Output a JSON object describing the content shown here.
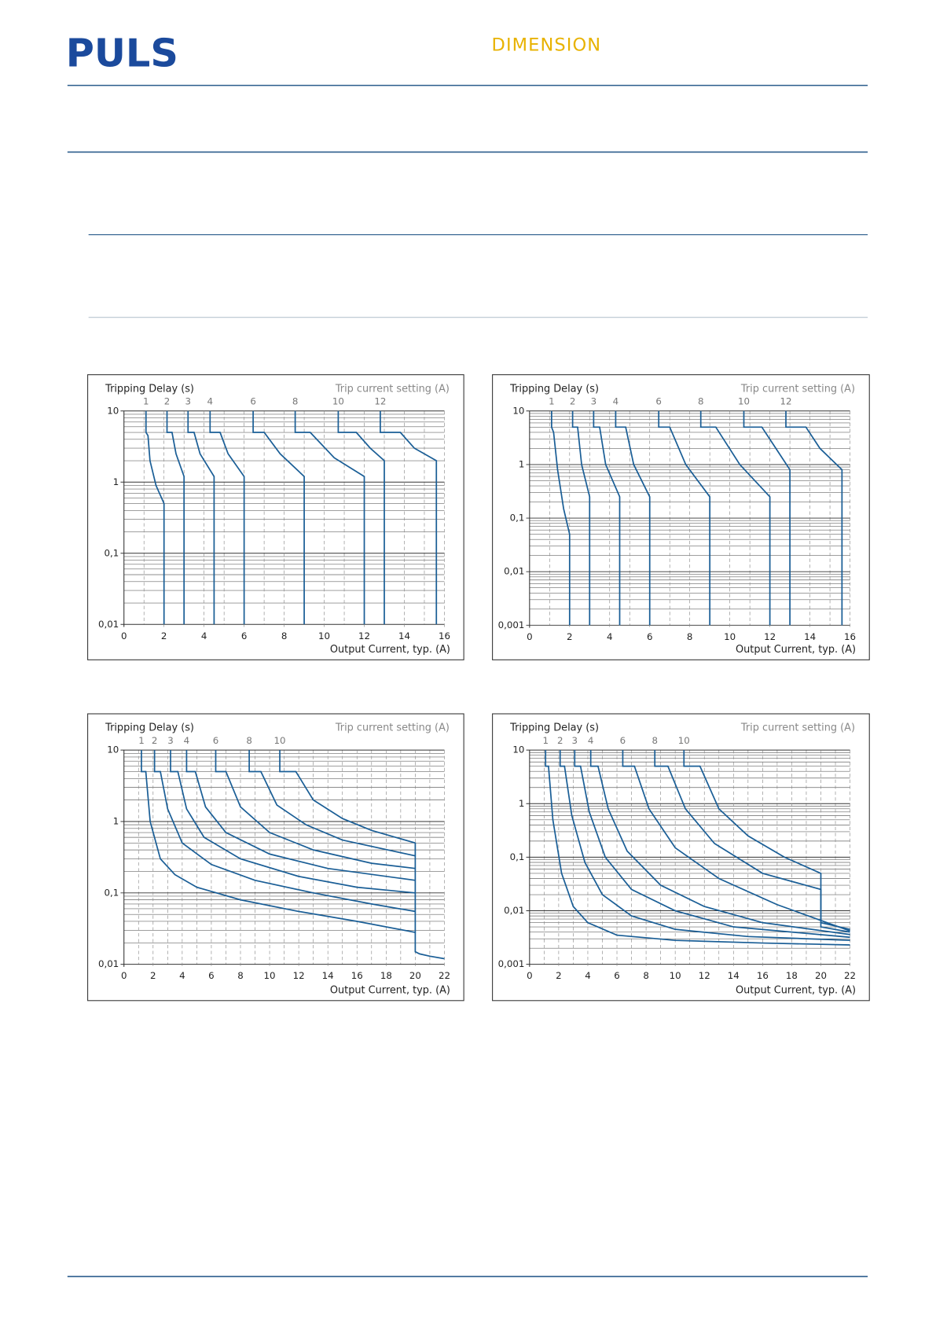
{
  "header": {
    "logo": "PULS",
    "brand": "DIMENSION"
  },
  "chart_data": [
    {
      "type": "line",
      "y_label": "Tripping Delay (s)",
      "legend_title": "Trip current setting (A)",
      "x_label": "Output Current, typ. (A)",
      "xlim": [
        0,
        16
      ],
      "xticks": [
        0,
        2,
        4,
        6,
        8,
        10,
        12,
        14,
        16
      ],
      "ylim": [
        0.01,
        10
      ],
      "yticks": [
        {
          "value": 0.01,
          "label": "0,01"
        },
        {
          "value": 0.1,
          "label": "0,1"
        },
        1,
        10
      ],
      "log_y": true,
      "grid": true,
      "color": "#1a5e96",
      "series": [
        {
          "name": "1",
          "x": [
            1.1,
            1.1,
            1.2,
            1.3,
            1.6,
            2,
            2
          ],
          "values": [
            10,
            5,
            4.5,
            2,
            0.9,
            0.5,
            0.01
          ]
        },
        {
          "name": "2",
          "x": [
            2.15,
            2.15,
            2.4,
            2.6,
            3,
            3
          ],
          "values": [
            10,
            5,
            5,
            2.5,
            1.2,
            0.01
          ]
        },
        {
          "name": "3",
          "x": [
            3.2,
            3.2,
            3.5,
            3.8,
            4.5,
            4.5
          ],
          "values": [
            10,
            5,
            5,
            2.5,
            1.2,
            0.01
          ]
        },
        {
          "name": "4",
          "x": [
            4.3,
            4.3,
            4.8,
            5.2,
            6,
            6
          ],
          "values": [
            10,
            5,
            5,
            2.5,
            1.2,
            0.01
          ]
        },
        {
          "name": "6",
          "x": [
            6.45,
            6.45,
            7,
            7.8,
            9,
            9
          ],
          "values": [
            10,
            5,
            5,
            2.5,
            1.2,
            0.01
          ]
        },
        {
          "name": "8",
          "x": [
            8.55,
            8.55,
            9.3,
            10.5,
            12,
            12
          ],
          "values": [
            10,
            5,
            5,
            2.2,
            1.2,
            0.01
          ]
        },
        {
          "name": "10",
          "x": [
            10.7,
            10.7,
            11.6,
            12.3,
            13,
            13
          ],
          "values": [
            10,
            5,
            5,
            3,
            2,
            0.01
          ]
        },
        {
          "name": "12",
          "x": [
            12.8,
            12.8,
            13.8,
            14.5,
            15.6,
            15.6
          ],
          "values": [
            10,
            5,
            5,
            3,
            2,
            0.01
          ]
        }
      ]
    },
    {
      "type": "line",
      "y_label": "Tripping Delay (s)",
      "legend_title": "Trip current setting (A)",
      "x_label": "Output Current, typ. (A)",
      "xlim": [
        0,
        16
      ],
      "xticks": [
        0,
        2,
        4,
        6,
        8,
        10,
        12,
        14,
        16
      ],
      "ylim": [
        0.001,
        10
      ],
      "yticks": [
        {
          "value": 0.001,
          "label": "0,001"
        },
        {
          "value": 0.01,
          "label": "0,01"
        },
        {
          "value": 0.1,
          "label": "0,1"
        },
        1,
        10
      ],
      "log_y": true,
      "grid": true,
      "color": "#1a5e96",
      "series": [
        {
          "name": "1",
          "x": [
            1.1,
            1.1,
            1.2,
            1.4,
            1.7,
            2,
            2
          ],
          "values": [
            10,
            5,
            4,
            0.8,
            0.15,
            0.05,
            0.001
          ]
        },
        {
          "name": "2",
          "x": [
            2.15,
            2.15,
            2.4,
            2.6,
            3,
            3
          ],
          "values": [
            10,
            5,
            5,
            1,
            0.25,
            0.001
          ]
        },
        {
          "name": "3",
          "x": [
            3.2,
            3.2,
            3.5,
            3.8,
            4.5,
            4.5
          ],
          "values": [
            10,
            5,
            5,
            1,
            0.25,
            0.001
          ]
        },
        {
          "name": "4",
          "x": [
            4.3,
            4.3,
            4.8,
            5.2,
            6,
            6
          ],
          "values": [
            10,
            5,
            5,
            1,
            0.25,
            0.001
          ]
        },
        {
          "name": "6",
          "x": [
            6.45,
            6.45,
            7,
            7.8,
            9,
            9
          ],
          "values": [
            10,
            5,
            5,
            1,
            0.25,
            0.001
          ]
        },
        {
          "name": "8",
          "x": [
            8.55,
            8.55,
            9.3,
            10.5,
            12,
            12
          ],
          "values": [
            10,
            5,
            5,
            1,
            0.25,
            0.001
          ]
        },
        {
          "name": "10",
          "x": [
            10.7,
            10.7,
            11.6,
            12.3,
            13,
            13
          ],
          "values": [
            10,
            5,
            5,
            2,
            0.8,
            0.001
          ]
        },
        {
          "name": "12",
          "x": [
            12.8,
            12.8,
            13.8,
            14.5,
            15.6,
            15.6
          ],
          "values": [
            10,
            5,
            5,
            2,
            0.8,
            0.001
          ]
        }
      ]
    },
    {
      "type": "line",
      "y_label": "Tripping Delay (s)",
      "legend_title": "Trip current setting (A)",
      "x_label": "Output Current, typ. (A)",
      "xlim": [
        0,
        22
      ],
      "xticks": [
        0,
        2,
        4,
        6,
        8,
        10,
        12,
        14,
        16,
        18,
        20,
        22
      ],
      "ylim": [
        0.01,
        10
      ],
      "yticks": [
        {
          "value": 0.01,
          "label": "0,01"
        },
        {
          "value": 0.1,
          "label": "0,1"
        },
        1,
        10
      ],
      "log_y": true,
      "grid": true,
      "color": "#1a5e96",
      "series": [
        {
          "name": "1",
          "x": [
            1.2,
            1.2,
            1.5,
            1.8,
            2.5,
            3.5,
            5,
            8,
            12,
            16,
            20,
            20,
            20.3,
            21,
            22
          ],
          "values": [
            10,
            5,
            5,
            1,
            0.3,
            0.18,
            0.12,
            0.08,
            0.055,
            0.04,
            0.028,
            0.015,
            0.014,
            0.013,
            0.012
          ]
        },
        {
          "name": "2",
          "x": [
            2.1,
            2.1,
            2.5,
            3,
            4,
            6,
            9,
            13,
            17,
            20
          ],
          "values": [
            10,
            5,
            5,
            1.5,
            0.5,
            0.25,
            0.15,
            0.1,
            0.07,
            0.055
          ]
        },
        {
          "name": "3",
          "x": [
            3.2,
            3.2,
            3.7,
            4.3,
            5.5,
            8,
            12,
            16,
            20
          ],
          "values": [
            10,
            5,
            5,
            1.5,
            0.6,
            0.3,
            0.17,
            0.12,
            0.1
          ]
        },
        {
          "name": "4",
          "x": [
            4.3,
            4.3,
            4.9,
            5.6,
            7,
            10,
            14,
            20
          ],
          "values": [
            10,
            5,
            5,
            1.6,
            0.7,
            0.35,
            0.22,
            0.15
          ]
        },
        {
          "name": "6",
          "x": [
            6.3,
            6.3,
            7,
            8,
            10,
            13,
            17,
            20
          ],
          "values": [
            10,
            5,
            5,
            1.6,
            0.7,
            0.4,
            0.26,
            0.22
          ]
        },
        {
          "name": "8",
          "x": [
            8.6,
            8.6,
            9.4,
            10.5,
            12.5,
            15,
            20
          ],
          "values": [
            10,
            5,
            5,
            1.7,
            0.9,
            0.55,
            0.33
          ]
        },
        {
          "name": "10",
          "x": [
            10.7,
            10.7,
            11.8,
            13,
            15,
            17,
            20,
            20
          ],
          "values": [
            10,
            5,
            5,
            2,
            1.1,
            0.75,
            0.5,
            0.028
          ]
        }
      ]
    },
    {
      "type": "line",
      "y_label": "Tripping Delay (s)",
      "legend_title": "Trip current setting (A)",
      "x_label": "Output Current, typ. (A)",
      "xlim": [
        0,
        22
      ],
      "xticks": [
        0,
        2,
        4,
        6,
        8,
        10,
        12,
        14,
        16,
        18,
        20,
        22
      ],
      "ylim": [
        0.001,
        10
      ],
      "yticks": [
        {
          "value": 0.001,
          "label": "0,001"
        },
        {
          "value": 0.01,
          "label": "0,01"
        },
        {
          "value": 0.1,
          "label": "0,1"
        },
        1,
        10
      ],
      "log_y": true,
      "grid": true,
      "color": "#1a5e96",
      "series": [
        {
          "name": "1",
          "x": [
            1.1,
            1.1,
            1.3,
            1.6,
            2.2,
            3,
            4,
            6,
            10,
            16,
            22
          ],
          "values": [
            10,
            5,
            5,
            0.5,
            0.05,
            0.012,
            0.006,
            0.0035,
            0.0028,
            0.0025,
            0.0023
          ]
        },
        {
          "name": "2",
          "x": [
            2.1,
            2.1,
            2.4,
            2.9,
            3.8,
            5,
            7,
            10,
            15,
            22
          ],
          "values": [
            10,
            5,
            5,
            0.6,
            0.08,
            0.02,
            0.008,
            0.0045,
            0.0033,
            0.0028
          ]
        },
        {
          "name": "3",
          "x": [
            3.1,
            3.1,
            3.5,
            4.1,
            5.2,
            7,
            10,
            14,
            22
          ],
          "values": [
            10,
            5,
            5,
            0.7,
            0.1,
            0.025,
            0.01,
            0.005,
            0.0032
          ]
        },
        {
          "name": "4",
          "x": [
            4.2,
            4.2,
            4.7,
            5.4,
            6.7,
            9,
            12,
            16,
            22
          ],
          "values": [
            10,
            5,
            5,
            0.8,
            0.13,
            0.03,
            0.012,
            0.006,
            0.0036
          ]
        },
        {
          "name": "6",
          "x": [
            6.4,
            6.4,
            7.2,
            8.2,
            10,
            13,
            17,
            22
          ],
          "values": [
            10,
            5,
            5,
            0.8,
            0.15,
            0.04,
            0.013,
            0.0042
          ]
        },
        {
          "name": "8",
          "x": [
            8.6,
            8.6,
            9.5,
            10.7,
            12.7,
            16,
            20,
            20,
            22
          ],
          "values": [
            10,
            5,
            5,
            0.8,
            0.18,
            0.05,
            0.025,
            0.005,
            0.004
          ]
        },
        {
          "name": "10",
          "x": [
            10.6,
            10.6,
            11.7,
            13,
            15,
            17.5,
            20,
            20,
            22
          ],
          "values": [
            10,
            5,
            5,
            0.8,
            0.25,
            0.1,
            0.05,
            0.006,
            0.0045
          ]
        }
      ]
    }
  ]
}
